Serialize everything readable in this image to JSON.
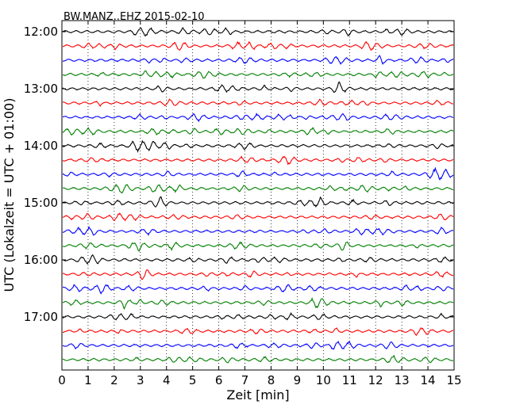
{
  "chart_data": {
    "type": "line",
    "title": "BW.MANZ..EHZ 2015-02-10",
    "xlabel": "Zeit  [min]",
    "ylabel": "UTC (Lokalzeit = UTC + 01:00)",
    "xlim": [
      0,
      15
    ],
    "x_ticks": [
      0,
      1,
      2,
      3,
      4,
      5,
      6,
      7,
      8,
      9,
      10,
      11,
      12,
      13,
      14,
      15
    ],
    "y_tick_labels": [
      "12:00",
      "13:00",
      "14:00",
      "15:00",
      "16:00",
      "17:00"
    ],
    "grid": "vertical dotted lines at each minute",
    "trace_interval_min": 15,
    "trace_colors": [
      "#000000",
      "#ff0000",
      "#0000ff",
      "#007f00"
    ],
    "traces": [
      {
        "start": "12:00",
        "color": "#000000"
      },
      {
        "start": "12:15",
        "color": "#ff0000"
      },
      {
        "start": "12:30",
        "color": "#0000ff"
      },
      {
        "start": "12:45",
        "color": "#007f00"
      },
      {
        "start": "13:00",
        "color": "#000000"
      },
      {
        "start": "13:15",
        "color": "#ff0000"
      },
      {
        "start": "13:30",
        "color": "#0000ff"
      },
      {
        "start": "13:45",
        "color": "#007f00"
      },
      {
        "start": "14:00",
        "color": "#000000"
      },
      {
        "start": "14:15",
        "color": "#ff0000"
      },
      {
        "start": "14:30",
        "color": "#0000ff"
      },
      {
        "start": "14:45",
        "color": "#007f00"
      },
      {
        "start": "15:00",
        "color": "#000000"
      },
      {
        "start": "15:15",
        "color": "#ff0000"
      },
      {
        "start": "15:30",
        "color": "#0000ff"
      },
      {
        "start": "15:45",
        "color": "#007f00"
      },
      {
        "start": "16:00",
        "color": "#000000"
      },
      {
        "start": "16:15",
        "color": "#ff0000"
      },
      {
        "start": "16:30",
        "color": "#0000ff"
      },
      {
        "start": "16:45",
        "color": "#007f00"
      },
      {
        "start": "17:00",
        "color": "#000000"
      },
      {
        "start": "17:15",
        "color": "#ff0000"
      },
      {
        "start": "17:30",
        "color": "#0000ff"
      },
      {
        "start": "17:45",
        "color": "#007f00"
      }
    ]
  }
}
